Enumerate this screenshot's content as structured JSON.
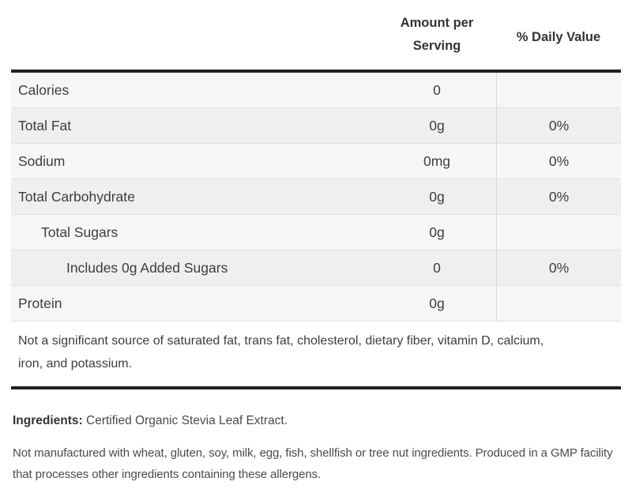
{
  "table": {
    "header": {
      "amount_label": "Amount per Serving",
      "daily_value_label": "% Daily Value"
    },
    "rows": [
      {
        "label": "Calories",
        "amount": "0",
        "daily_value": "",
        "indent": 0
      },
      {
        "label": "Total Fat",
        "amount": "0g",
        "daily_value": "0%",
        "indent": 0
      },
      {
        "label": "Sodium",
        "amount": "0mg",
        "daily_value": "0%",
        "indent": 0
      },
      {
        "label": "Total Carbohydrate",
        "amount": "0g",
        "daily_value": "0%",
        "indent": 0
      },
      {
        "label": "Total Sugars",
        "amount": "0g",
        "daily_value": "",
        "indent": 1
      },
      {
        "label": "Includes 0g Added Sugars",
        "amount": "0",
        "daily_value": "0%",
        "indent": 2
      },
      {
        "label": "Protein",
        "amount": "0g",
        "daily_value": "",
        "indent": 0
      }
    ],
    "footnote": "Not a significant source of saturated fat, trans fat, cholesterol, dietary fiber, vitamin D, calcium, iron, and potassium."
  },
  "ingredients": {
    "label": "Ingredients:",
    "text": " Certified Organic Stevia Leaf Extract."
  },
  "allergen_note": "Not manufactured with wheat, gluten, soy, milk, egg, fish, shellfish or tree nut ingredients. Produced in a GMP facility that processes other ingredients containing these allergens.",
  "colors": {
    "thick_border": "#212121",
    "row_border": "#e2e2e2",
    "column_divider": "#d9d9d9",
    "row_bg_odd": "#f6f6f6",
    "row_bg_even": "#efefef",
    "text": "#3d3d3d"
  }
}
